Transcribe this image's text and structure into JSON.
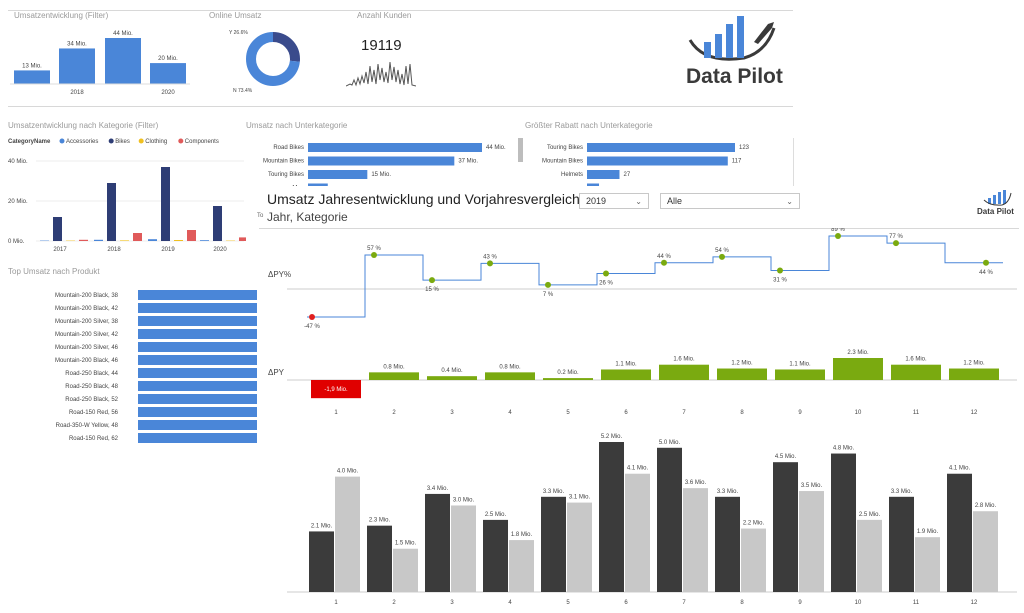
{
  "sections": {
    "umsatzentwicklung": {
      "title": "Umsatzentwicklung (Filter)"
    },
    "online": {
      "title": "Online Umsatz"
    },
    "kunden": {
      "title": "Anzahl Kunden",
      "value": "19119"
    },
    "kategorie": {
      "title": "Umsatzentwicklung nach Kategorie (Filter)"
    },
    "unterkategorie": {
      "title": "Umsatz nach Unterkategorie"
    },
    "rabatt": {
      "title": "Größter Rabatt nach Unterkategorie"
    },
    "produkt": {
      "title": "Top Umsatz nach Produkt"
    }
  },
  "logo": {
    "text": "Data Pilot",
    "small_text": "Data Pilot"
  },
  "overlay": {
    "title": "Umsatz Jahresentwicklung und Vorjahresvergleich",
    "subtitle": "Jahr, Kategorie",
    "to_label": "To",
    "year_select": "2019",
    "category_select": "Alle",
    "label_dpy_pct": "ΔPY%",
    "label_dpy": "ΔPY"
  },
  "chart_data": [
    {
      "id": "umsatzentwicklung",
      "type": "bar",
      "values": [
        13,
        34,
        44,
        20
      ],
      "data_labels": [
        "13 Mio.",
        "34 Mio.",
        "44 Mio.",
        "20 Mio."
      ],
      "tick_labels": [
        "2018",
        "2020"
      ]
    },
    {
      "id": "online",
      "type": "pie",
      "slices": [
        {
          "name": "Y",
          "value": 26.6,
          "label": "Y 26.6%",
          "color": "#3a4b8c"
        },
        {
          "name": "N",
          "value": 73.4,
          "label": "N 73.4%",
          "color": "#4a86d8"
        }
      ]
    },
    {
      "id": "kategorie",
      "type": "bar",
      "legend_title": "CategoryName",
      "categories": [
        "2017",
        "2018",
        "2019",
        "2020"
      ],
      "y_ticks": [
        "40 Mio.",
        "20 Mio.",
        "0 Mio."
      ],
      "ylim": [
        0,
        40
      ],
      "series": [
        {
          "name": "Accessories",
          "color": "#4a86d8",
          "values": [
            0.1,
            0.6,
            0.9,
            0.4
          ]
        },
        {
          "name": "Bikes",
          "color": "#2e3d75",
          "values": [
            12,
            29,
            37,
            17.5
          ]
        },
        {
          "name": "Clothing",
          "color": "#f0c020",
          "values": [
            0,
            0.3,
            0.5,
            0.2
          ]
        },
        {
          "name": "Components",
          "color": "#e05a5a",
          "values": [
            0.6,
            4,
            5.5,
            1.8
          ]
        }
      ]
    },
    {
      "id": "unterkategorie",
      "type": "bar",
      "categories": [
        "Road Bikes",
        "Mountain Bikes",
        "Touring Bikes",
        "Mou"
      ],
      "values": [
        44,
        37,
        15,
        5
      ],
      "data_labels": [
        "44 Mio.",
        "37 Mio.",
        "15 Mio.",
        ""
      ]
    },
    {
      "id": "rabatt",
      "type": "bar",
      "categories": [
        "Touring Bikes",
        "Mountain Bikes",
        "Helmets",
        ""
      ],
      "values": [
        123,
        117,
        27,
        10
      ],
      "data_labels": [
        "123",
        "117",
        "27",
        ""
      ]
    },
    {
      "id": "produkt",
      "type": "bar",
      "categories": [
        "Mountain-200 Black, 38",
        "Mountain-200 Black, 42",
        "Mountain-200 Silver, 38",
        "Mountain-200 Silver, 42",
        "Mountain-200 Silver, 46",
        "Mountain-200 Black, 46",
        "Road-250 Black, 44",
        "Road-250 Black, 48",
        "Road-250 Black, 52",
        "Road-150 Red, 56",
        "Road-350-W Yellow, 48",
        "Road-150 Red, 62"
      ],
      "values": [
        1,
        1,
        1,
        1,
        1,
        1,
        1,
        1,
        1,
        1,
        1,
        1
      ]
    },
    {
      "id": "dpy_pct",
      "type": "line",
      "x": [
        "1",
        "2",
        "3",
        "4",
        "5",
        "6",
        "7",
        "8",
        "9",
        "10",
        "11",
        "12"
      ],
      "values": [
        -47,
        57,
        15,
        43,
        7,
        26,
        44,
        54,
        31,
        89,
        77,
        44
      ],
      "data_labels": [
        "-47 %",
        "57 %",
        "15 %",
        "43 %",
        "7 %",
        "26 %",
        "44 %",
        "54 %",
        "31 %",
        "89 %",
        "77 %",
        "44 %"
      ]
    },
    {
      "id": "dpy",
      "type": "bar",
      "x": [
        "1",
        "2",
        "3",
        "4",
        "5",
        "6",
        "7",
        "8",
        "9",
        "10",
        "11",
        "12"
      ],
      "values": [
        -1.9,
        0.8,
        0.4,
        0.8,
        0.2,
        1.1,
        1.6,
        1.2,
        1.1,
        2.3,
        1.6,
        1.2
      ],
      "data_labels": [
        "-1,9 Mio.",
        "0.8 Mio.",
        "0.4 Mio.",
        "0.8 Mio.",
        "0.2 Mio.",
        "1.1 Mio.",
        "1.6 Mio.",
        "1.2 Mio.",
        "1.1 Mio.",
        "2.3 Mio.",
        "1.6 Mio.",
        "1.2 Mio."
      ]
    },
    {
      "id": "monthly",
      "type": "bar",
      "x": [
        "1",
        "2",
        "3",
        "4",
        "5",
        "6",
        "7",
        "8",
        "9",
        "10",
        "11",
        "12"
      ],
      "series": [
        {
          "color": "#3b3b3b",
          "values": [
            2.1,
            2.3,
            3.4,
            2.5,
            3.3,
            5.2,
            5.0,
            3.3,
            4.5,
            4.8,
            3.3,
            4.1
          ],
          "data_labels": [
            "2.1 Mio.",
            "2.3 Mio.",
            "3.4 Mio.",
            "2.5 Mio.",
            "3.3 Mio.",
            "5.2 Mio.",
            "5.0 Mio.",
            "3.3 Mio.",
            "4.5 Mio.",
            "4.8 Mio.",
            "3.3 Mio.",
            "4.1 Mio."
          ]
        },
        {
          "color": "#c8c8c8",
          "values": [
            4.0,
            1.5,
            3.0,
            1.8,
            3.1,
            4.1,
            3.6,
            2.2,
            3.5,
            2.5,
            1.9,
            2.8
          ],
          "data_labels": [
            "4.0 Mio.",
            "1.5 Mio.",
            "3.0 Mio.",
            "1.8 Mio.",
            "3.1 Mio.",
            "4.1 Mio.",
            "3.6 Mio.",
            "2.2 Mio.",
            "3.5 Mio.",
            "2.5 Mio.",
            "1.9 Mio.",
            "2.8 Mio."
          ]
        }
      ]
    }
  ]
}
